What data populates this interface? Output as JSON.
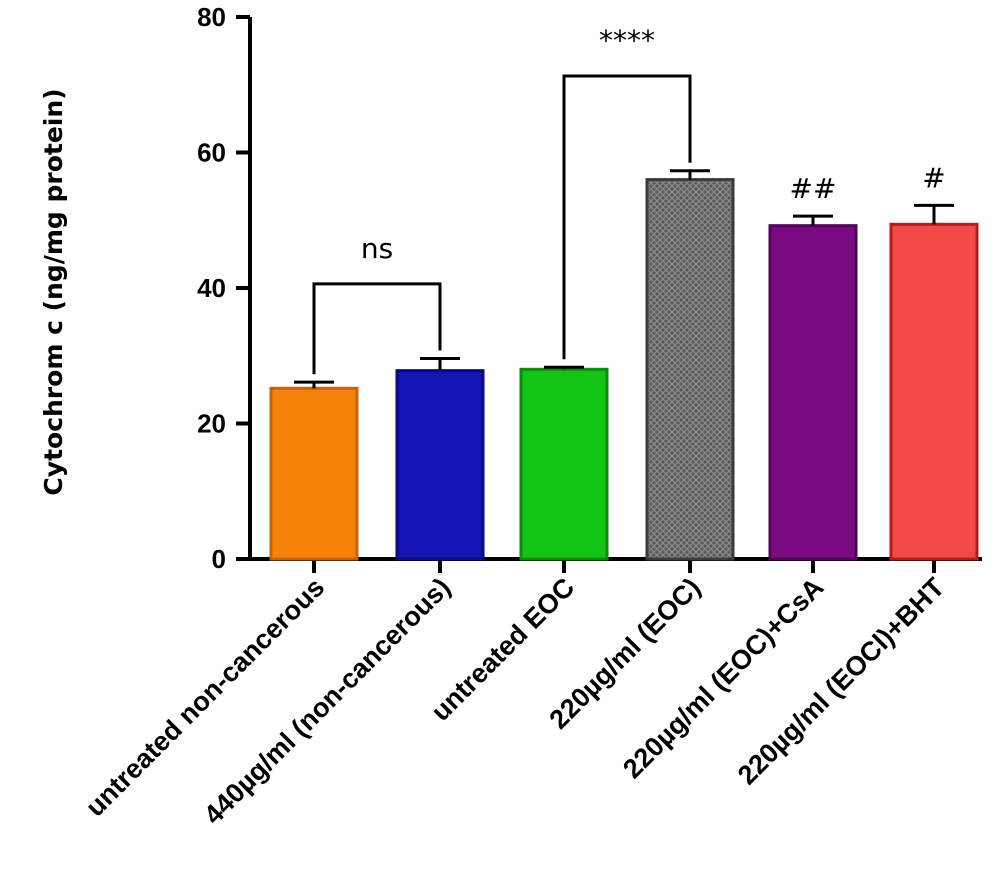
{
  "chart_data": {
    "type": "bar",
    "ylabel": "Cytochrom c (ng/mg protein)",
    "ylim": [
      0,
      80
    ],
    "yticks": [
      "0",
      "20",
      "40",
      "60",
      "80"
    ],
    "categories": [
      "untreated non-cancerous",
      "440µg/ml (non-cancerous)",
      "untreated EOC",
      "220µg/ml (EOC)",
      "220µg/ml (EOC)+CsA",
      "220µg/ml (EOCl)+BHT"
    ],
    "values": [
      25.2,
      27.8,
      28.0,
      56.0,
      49.2,
      49.4
    ],
    "errors": [
      0.9,
      1.8,
      0.3,
      1.3,
      1.4,
      2.8
    ],
    "colors": [
      "#F7820A",
      "#1414B4",
      "#14C414",
      "#6E6E6E",
      "#7A0A82",
      "#F44848"
    ],
    "edge_colors": [
      "#C46406",
      "#0A0A7A",
      "#0E8A0E",
      "#3A3A3A",
      "#4E0656",
      "#B01E1E"
    ],
    "patterns": [
      "none",
      "none",
      "none",
      "crosshatch",
      "none",
      "none"
    ],
    "comparisons": [
      {
        "from": 0,
        "to": 1,
        "label": "ns"
      },
      {
        "from": 2,
        "to": 3,
        "label": "****"
      }
    ],
    "bar_annotations": [
      {
        "index": 4,
        "label": "##"
      },
      {
        "index": 5,
        "label": "#"
      }
    ]
  }
}
